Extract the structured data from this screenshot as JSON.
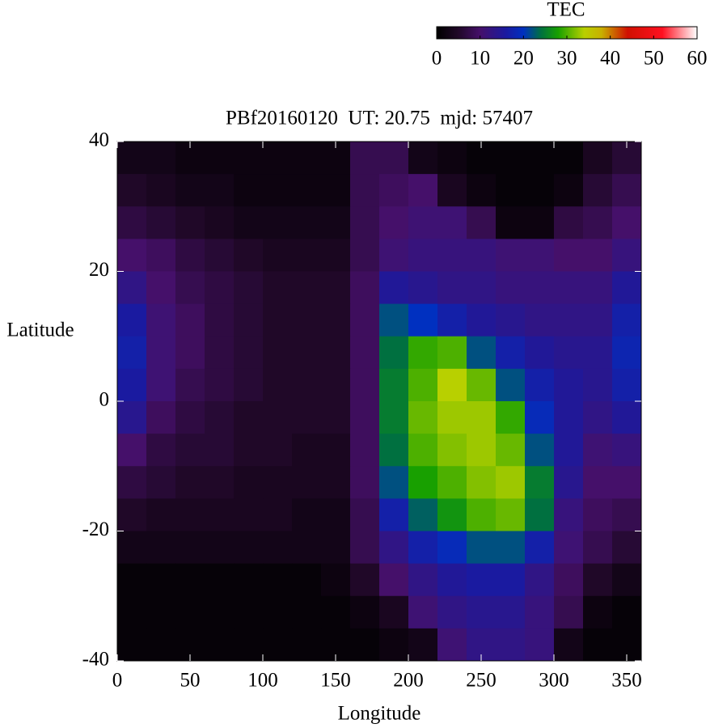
{
  "chart_data": {
    "type": "heatmap",
    "title": "PBf20160120  UT: 20.75  mjd: 57407",
    "xlabel": "Longitude",
    "ylabel": "Latitude",
    "colorbar_label": "TEC",
    "x": [
      10,
      30,
      50,
      70,
      90,
      110,
      130,
      150,
      170,
      190,
      210,
      230,
      250,
      270,
      290,
      310,
      330,
      350
    ],
    "y": [
      37.5,
      32.5,
      27.5,
      22.5,
      17.5,
      12.5,
      7.5,
      2.5,
      -2.5,
      -7.5,
      -12.5,
      -17.5,
      -22.5,
      -27.5,
      -32.5,
      -37.5
    ],
    "z": [
      [
        3,
        3,
        2,
        2,
        2,
        2,
        2,
        2,
        8,
        8,
        3,
        2,
        1,
        1,
        1,
        1,
        4,
        6
      ],
      [
        5,
        4,
        3,
        3,
        2,
        2,
        2,
        2,
        8,
        9,
        10,
        4,
        2,
        1,
        1,
        2,
        6,
        8
      ],
      [
        7,
        6,
        5,
        4,
        3,
        3,
        3,
        3,
        8,
        10,
        11,
        11,
        8,
        2,
        2,
        7,
        8,
        10
      ],
      [
        10,
        9,
        7,
        6,
        5,
        4,
        4,
        4,
        8,
        11,
        12,
        12,
        12,
        11,
        11,
        10,
        10,
        12
      ],
      [
        13,
        10,
        8,
        7,
        6,
        5,
        5,
        5,
        9,
        15,
        14,
        13,
        13,
        12,
        12,
        12,
        12,
        15
      ],
      [
        16,
        11,
        9,
        7,
        6,
        5,
        5,
        5,
        9,
        22,
        20,
        17,
        15,
        14,
        13,
        13,
        13,
        17
      ],
      [
        17,
        11,
        9,
        7,
        6,
        5,
        5,
        5,
        9,
        24,
        29,
        30,
        22,
        17,
        15,
        14,
        14,
        18
      ],
      [
        16,
        11,
        8,
        7,
        6,
        5,
        5,
        5,
        9,
        25,
        30,
        34,
        31,
        22,
        17,
        15,
        14,
        17
      ],
      [
        14,
        9,
        7,
        6,
        5,
        5,
        5,
        5,
        9,
        25,
        31,
        33,
        33,
        29,
        19,
        15,
        13,
        15
      ],
      [
        10,
        7,
        6,
        6,
        5,
        5,
        4,
        4,
        9,
        24,
        30,
        32,
        33,
        31,
        22,
        15,
        11,
        12
      ],
      [
        7,
        6,
        5,
        5,
        4,
        4,
        4,
        4,
        9,
        22,
        28,
        30,
        32,
        33,
        25,
        14,
        10,
        10
      ],
      [
        5,
        4,
        4,
        4,
        4,
        4,
        3,
        3,
        8,
        17,
        23,
        27,
        30,
        31,
        24,
        12,
        9,
        8
      ],
      [
        3,
        3,
        3,
        3,
        3,
        3,
        3,
        3,
        8,
        13,
        17,
        19,
        22,
        22,
        17,
        11,
        8,
        6
      ],
      [
        1,
        1,
        1,
        1,
        1,
        1,
        1,
        2,
        5,
        10,
        13,
        15,
        16,
        16,
        13,
        9,
        5,
        3
      ],
      [
        1,
        1,
        1,
        1,
        1,
        1,
        1,
        1,
        2,
        4,
        11,
        13,
        14,
        14,
        12,
        8,
        2,
        1
      ],
      [
        1,
        1,
        1,
        1,
        1,
        1,
        1,
        1,
        1,
        2,
        3,
        11,
        13,
        13,
        12,
        3,
        1,
        1
      ]
    ],
    "xlim": [
      0,
      360
    ],
    "ylim": [
      -40,
      40
    ],
    "xticks": [
      0,
      50,
      100,
      150,
      200,
      250,
      300,
      350
    ],
    "yticks": [
      -40,
      -20,
      0,
      20,
      40
    ],
    "clim": [
      0,
      60
    ],
    "cticks": [
      0,
      10,
      20,
      30,
      40,
      50,
      60
    ],
    "colormap": [
      {
        "value": 0,
        "color": "#000000"
      },
      {
        "value": 5,
        "color": "#200828"
      },
      {
        "value": 10,
        "color": "#45106a"
      },
      {
        "value": 16,
        "color": "#1a1aa0"
      },
      {
        "value": 20,
        "color": "#0030c0"
      },
      {
        "value": 24,
        "color": "#007040"
      },
      {
        "value": 28,
        "color": "#18a000"
      },
      {
        "value": 34,
        "color": "#b8d000"
      },
      {
        "value": 38,
        "color": "#c8b000"
      },
      {
        "value": 44,
        "color": "#d01000"
      },
      {
        "value": 52,
        "color": "#ff1020"
      },
      {
        "value": 60,
        "color": "#ffffff"
      }
    ]
  }
}
